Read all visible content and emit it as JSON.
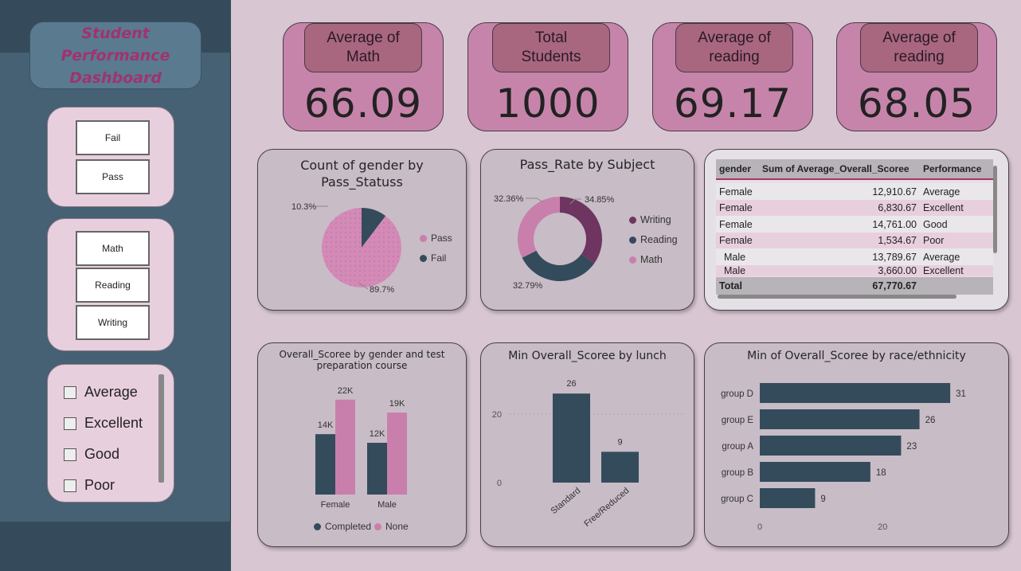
{
  "sidebar": {
    "title_line1": "Student Performance",
    "title_line2": "Dashboard",
    "pass_slicer": [
      "Fail",
      "Pass"
    ],
    "subject_slicer": [
      "Math",
      "Reading",
      "Writing"
    ],
    "performance_slicer": [
      "Average",
      "Excellent",
      "Good",
      "Poor"
    ]
  },
  "kpis": [
    {
      "label_line1": "Average of",
      "label_line2": "Math",
      "value": "66.09"
    },
    {
      "label_line1": "Total",
      "label_line2": "Students",
      "value": "1000"
    },
    {
      "label_line1": "Average of",
      "label_line2": "reading",
      "value": "69.17"
    },
    {
      "label_line1": "Average of",
      "label_line2": "reading",
      "value": "68.05"
    }
  ],
  "colors": {
    "pink": "#c97fab",
    "dark_slate": "#344b5c",
    "plum": "#6e3560",
    "sidebar": "#456173",
    "accent": "#a0336e"
  },
  "chart_data": [
    {
      "type": "pie",
      "title": "Count of gender by Pass_Statuss",
      "categories": [
        "Pass",
        "Fail"
      ],
      "values": [
        89.7,
        10.3
      ],
      "labels": [
        "89.7%",
        "10.3%"
      ],
      "legend": "right"
    },
    {
      "type": "pie",
      "title": "Pass_Rate by Subject",
      "categories": [
        "Writing",
        "Reading",
        "Math"
      ],
      "values": [
        34.85,
        32.79,
        32.36
      ],
      "labels": [
        "34.85%",
        "32.79%",
        "32.36%"
      ],
      "legend": "right"
    },
    {
      "type": "table",
      "columns": [
        "gender",
        "Sum of Average_Overall_Scoree",
        "Performance"
      ],
      "rows": [
        [
          "Female",
          "12,910.67",
          "Average"
        ],
        [
          "Female",
          "6,830.67",
          "Excellent"
        ],
        [
          "Female",
          "14,761.00",
          "Good"
        ],
        [
          "Female",
          "1,534.67",
          "Poor"
        ],
        [
          "Male",
          "13,789.67",
          "Average"
        ],
        [
          "Male",
          "3,660.00",
          "Excellent"
        ]
      ],
      "total_label": "Total",
      "total_value": "67,770.67"
    },
    {
      "type": "bar",
      "title": "Overall_Scoree by gender and test preparation course",
      "categories": [
        "Female",
        "Male"
      ],
      "series": [
        {
          "name": "Completed",
          "values": [
            14,
            12
          ],
          "labels": [
            "14K",
            "12K"
          ]
        },
        {
          "name": "None",
          "values": [
            22,
            19
          ],
          "labels": [
            "22K",
            "19K"
          ]
        }
      ],
      "ylim": [
        0,
        24
      ],
      "legend": "bottom"
    },
    {
      "type": "bar",
      "title": "Min Overall_Scoree by lunch",
      "categories": [
        "Standard",
        "Free/Reduced"
      ],
      "values": [
        26,
        9
      ],
      "yticks": [
        "0",
        "20"
      ],
      "ylim": [
        0,
        30
      ],
      "grid": true
    },
    {
      "type": "bar",
      "orientation": "horizontal",
      "title": "Min of Overall_Scoree by race/ethnicity",
      "categories": [
        "group D",
        "group E",
        "group A",
        "group B",
        "group C"
      ],
      "values": [
        31,
        26,
        23,
        18,
        9
      ],
      "xticks": [
        "0",
        "20"
      ],
      "xlim": [
        0,
        35
      ]
    }
  ]
}
